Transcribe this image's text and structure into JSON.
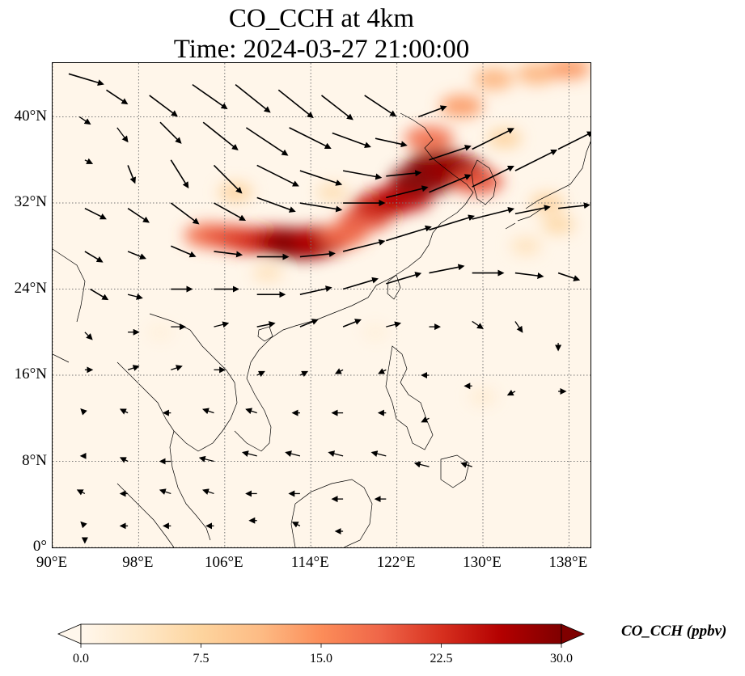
{
  "title": {
    "line1": "CO_CCH at 4km",
    "line2": "Time: 2024-03-27 21:00:00"
  },
  "map": {
    "lon_range": [
      90,
      140
    ],
    "lat_range": [
      0,
      45
    ],
    "gridlines": true,
    "lat_ticks": [
      {
        "value": 0,
        "label": "0°"
      },
      {
        "value": 8,
        "label": "8°N"
      },
      {
        "value": 16,
        "label": "16°N"
      },
      {
        "value": 24,
        "label": "24°N"
      },
      {
        "value": 32,
        "label": "32°N"
      },
      {
        "value": 40,
        "label": "40°N"
      }
    ],
    "lon_ticks": [
      {
        "value": 90,
        "label": "90°E"
      },
      {
        "value": 98,
        "label": "98°E"
      },
      {
        "value": 106,
        "label": "106°E"
      },
      {
        "value": 114,
        "label": "114°E"
      },
      {
        "value": 122,
        "label": "122°E"
      },
      {
        "value": 130,
        "label": "130°E"
      },
      {
        "value": 138,
        "label": "138°E"
      }
    ],
    "field": {
      "name": "CO_CCH",
      "units": "ppbv",
      "plumes": [
        {
          "lon": 104.5,
          "lat": 29.0,
          "value": 18
        },
        {
          "lon": 106.5,
          "lat": 28.8,
          "value": 20
        },
        {
          "lon": 108.5,
          "lat": 28.5,
          "value": 22
        },
        {
          "lon": 110.5,
          "lat": 28.5,
          "value": 24
        },
        {
          "lon": 112.0,
          "lat": 28.3,
          "value": 28
        },
        {
          "lon": 113.5,
          "lat": 28.2,
          "value": 30
        },
        {
          "lon": 115.0,
          "lat": 28.5,
          "value": 26
        },
        {
          "lon": 117.0,
          "lat": 29.0,
          "value": 18
        },
        {
          "lon": 119.0,
          "lat": 30.5,
          "value": 20
        },
        {
          "lon": 120.5,
          "lat": 31.8,
          "value": 24
        },
        {
          "lon": 122.5,
          "lat": 32.5,
          "value": 26
        },
        {
          "lon": 124.5,
          "lat": 34.2,
          "value": 30
        },
        {
          "lon": 126.0,
          "lat": 35.5,
          "value": 30
        },
        {
          "lon": 127.5,
          "lat": 35.0,
          "value": 28
        },
        {
          "lon": 129.5,
          "lat": 34.0,
          "value": 20
        },
        {
          "lon": 125.0,
          "lat": 38.0,
          "value": 18
        },
        {
          "lon": 128.0,
          "lat": 41.0,
          "value": 14
        },
        {
          "lon": 131.0,
          "lat": 43.5,
          "value": 12
        },
        {
          "lon": 135.0,
          "lat": 44.0,
          "value": 12
        },
        {
          "lon": 138.0,
          "lat": 44.5,
          "value": 14
        },
        {
          "lon": 136.0,
          "lat": 32.0,
          "value": 8
        },
        {
          "lon": 137.0,
          "lat": 30.0,
          "value": 7
        },
        {
          "lon": 134.0,
          "lat": 28.0,
          "value": 5
        },
        {
          "lon": 107.0,
          "lat": 33.0,
          "value": 8
        },
        {
          "lon": 116.0,
          "lat": 33.0,
          "value": 6
        },
        {
          "lon": 132.0,
          "lat": 38.0,
          "value": 8
        },
        {
          "lon": 110.0,
          "lat": 25.5,
          "value": 5
        },
        {
          "lon": 130.0,
          "lat": 14.0,
          "value": 3
        },
        {
          "lon": 100.0,
          "lat": 20.0,
          "value": 2
        },
        {
          "lon": 120.0,
          "lat": 20.0,
          "value": 2
        }
      ]
    },
    "wind_vectors": [
      {
        "lon": 91.5,
        "lat": 44.0,
        "u": 10,
        "v": -3
      },
      {
        "lon": 95.0,
        "lat": 42.5,
        "u": 6,
        "v": -4
      },
      {
        "lon": 99.0,
        "lat": 42.0,
        "u": 8,
        "v": -6
      },
      {
        "lon": 103.0,
        "lat": 43.0,
        "u": 10,
        "v": -7
      },
      {
        "lon": 107.0,
        "lat": 43.0,
        "u": 10,
        "v": -8
      },
      {
        "lon": 111.0,
        "lat": 42.5,
        "u": 10,
        "v": -8
      },
      {
        "lon": 115.0,
        "lat": 42.0,
        "u": 9,
        "v": -7
      },
      {
        "lon": 119.0,
        "lat": 42.0,
        "u": 9,
        "v": -6
      },
      {
        "lon": 92.5,
        "lat": 40.0,
        "u": 3,
        "v": -2
      },
      {
        "lon": 96.0,
        "lat": 39.0,
        "u": 3,
        "v": -4
      },
      {
        "lon": 100.0,
        "lat": 39.5,
        "u": 6,
        "v": -6
      },
      {
        "lon": 104.0,
        "lat": 39.5,
        "u": 10,
        "v": -8
      },
      {
        "lon": 108.0,
        "lat": 39.0,
        "u": 12,
        "v": -8
      },
      {
        "lon": 112.0,
        "lat": 39.0,
        "u": 12,
        "v": -6
      },
      {
        "lon": 116.0,
        "lat": 38.5,
        "u": 11,
        "v": -4
      },
      {
        "lon": 120.0,
        "lat": 38.0,
        "u": 9,
        "v": -2
      },
      {
        "lon": 124.0,
        "lat": 40.0,
        "u": 8,
        "v": 3
      },
      {
        "lon": 93.0,
        "lat": 36.0,
        "u": 2,
        "v": -1
      },
      {
        "lon": 97.0,
        "lat": 35.5,
        "u": 2,
        "v": -5
      },
      {
        "lon": 101.0,
        "lat": 36.0,
        "u": 5,
        "v": -8
      },
      {
        "lon": 105.0,
        "lat": 35.5,
        "u": 8,
        "v": -8
      },
      {
        "lon": 109.0,
        "lat": 35.5,
        "u": 12,
        "v": -6
      },
      {
        "lon": 113.0,
        "lat": 35.0,
        "u": 12,
        "v": -4
      },
      {
        "lon": 117.0,
        "lat": 35.0,
        "u": 11,
        "v": -2
      },
      {
        "lon": 121.0,
        "lat": 34.5,
        "u": 10,
        "v": 1
      },
      {
        "lon": 125.0,
        "lat": 36.0,
        "u": 12,
        "v": 4
      },
      {
        "lon": 129.0,
        "lat": 37.0,
        "u": 12,
        "v": 6
      },
      {
        "lon": 93.0,
        "lat": 31.5,
        "u": 6,
        "v": -3
      },
      {
        "lon": 97.0,
        "lat": 31.5,
        "u": 6,
        "v": -4
      },
      {
        "lon": 101.0,
        "lat": 32.0,
        "u": 8,
        "v": -6
      },
      {
        "lon": 105.0,
        "lat": 32.0,
        "u": 9,
        "v": -5
      },
      {
        "lon": 109.0,
        "lat": 32.5,
        "u": 11,
        "v": -4
      },
      {
        "lon": 113.0,
        "lat": 32.0,
        "u": 12,
        "v": -2
      },
      {
        "lon": 117.0,
        "lat": 32.0,
        "u": 12,
        "v": 0
      },
      {
        "lon": 121.0,
        "lat": 32.5,
        "u": 12,
        "v": 3
      },
      {
        "lon": 125.0,
        "lat": 33.0,
        "u": 12,
        "v": 5
      },
      {
        "lon": 129.0,
        "lat": 33.5,
        "u": 12,
        "v": 6
      },
      {
        "lon": 133.0,
        "lat": 35.0,
        "u": 12,
        "v": 6
      },
      {
        "lon": 137.0,
        "lat": 37.0,
        "u": 10,
        "v": 5
      },
      {
        "lon": 93.0,
        "lat": 27.5,
        "u": 5,
        "v": -3
      },
      {
        "lon": 97.0,
        "lat": 27.5,
        "u": 5,
        "v": -2
      },
      {
        "lon": 101.0,
        "lat": 28.0,
        "u": 7,
        "v": -3
      },
      {
        "lon": 105.0,
        "lat": 27.5,
        "u": 8,
        "v": -1
      },
      {
        "lon": 109.0,
        "lat": 27.0,
        "u": 9,
        "v": 0
      },
      {
        "lon": 113.0,
        "lat": 27.0,
        "u": 10,
        "v": 1
      },
      {
        "lon": 117.0,
        "lat": 27.5,
        "u": 12,
        "v": 3
      },
      {
        "lon": 121.0,
        "lat": 28.5,
        "u": 13,
        "v": 4
      },
      {
        "lon": 125.0,
        "lat": 29.5,
        "u": 13,
        "v": 4
      },
      {
        "lon": 129.0,
        "lat": 30.5,
        "u": 12,
        "v": 3
      },
      {
        "lon": 133.0,
        "lat": 31.0,
        "u": 10,
        "v": 2
      },
      {
        "lon": 137.0,
        "lat": 31.5,
        "u": 9,
        "v": 1
      },
      {
        "lon": 93.5,
        "lat": 24.0,
        "u": 5,
        "v": -3
      },
      {
        "lon": 97.0,
        "lat": 23.5,
        "u": 4,
        "v": -1
      },
      {
        "lon": 101.0,
        "lat": 24.0,
        "u": 6,
        "v": 0
      },
      {
        "lon": 105.0,
        "lat": 24.0,
        "u": 7,
        "v": 0
      },
      {
        "lon": 109.0,
        "lat": 23.5,
        "u": 8,
        "v": 0
      },
      {
        "lon": 113.0,
        "lat": 23.5,
        "u": 9,
        "v": 2
      },
      {
        "lon": 117.0,
        "lat": 24.0,
        "u": 10,
        "v": 3
      },
      {
        "lon": 121.0,
        "lat": 24.5,
        "u": 10,
        "v": 3
      },
      {
        "lon": 125.0,
        "lat": 25.5,
        "u": 10,
        "v": 2
      },
      {
        "lon": 129.0,
        "lat": 25.5,
        "u": 9,
        "v": 0
      },
      {
        "lon": 133.0,
        "lat": 25.5,
        "u": 8,
        "v": -1
      },
      {
        "lon": 137.0,
        "lat": 25.5,
        "u": 6,
        "v": -2
      },
      {
        "lon": 93.0,
        "lat": 20.0,
        "u": 2,
        "v": -2
      },
      {
        "lon": 97.0,
        "lat": 20.0,
        "u": 3,
        "v": 0
      },
      {
        "lon": 101.0,
        "lat": 20.5,
        "u": 4,
        "v": 0
      },
      {
        "lon": 105.0,
        "lat": 20.5,
        "u": 4,
        "v": 1
      },
      {
        "lon": 109.0,
        "lat": 20.5,
        "u": 5,
        "v": 1
      },
      {
        "lon": 113.0,
        "lat": 20.5,
        "u": 5,
        "v": 2
      },
      {
        "lon": 117.0,
        "lat": 20.5,
        "u": 5,
        "v": 2
      },
      {
        "lon": 121.0,
        "lat": 20.5,
        "u": 4,
        "v": 1
      },
      {
        "lon": 125.0,
        "lat": 20.5,
        "u": 3,
        "v": 0
      },
      {
        "lon": 129.0,
        "lat": 21.0,
        "u": 3,
        "v": -2
      },
      {
        "lon": 133.0,
        "lat": 21.0,
        "u": 2,
        "v": -3
      },
      {
        "lon": 137.0,
        "lat": 19.0,
        "u": 0,
        "v": -2
      },
      {
        "lon": 93.0,
        "lat": 16.5,
        "u": 2,
        "v": 0
      },
      {
        "lon": 97.0,
        "lat": 16.5,
        "u": 3,
        "v": 1
      },
      {
        "lon": 101.0,
        "lat": 16.5,
        "u": 3,
        "v": 1
      },
      {
        "lon": 105.0,
        "lat": 16.5,
        "u": 3,
        "v": 0
      },
      {
        "lon": 109.0,
        "lat": 16.0,
        "u": 2,
        "v": 1
      },
      {
        "lon": 113.0,
        "lat": 16.0,
        "u": 2,
        "v": 1
      },
      {
        "lon": 117.0,
        "lat": 16.5,
        "u": -2,
        "v": -1
      },
      {
        "lon": 121.0,
        "lat": 16.5,
        "u": -2,
        "v": -1
      },
      {
        "lon": 125.0,
        "lat": 16.0,
        "u": -2,
        "v": 0
      },
      {
        "lon": 129.0,
        "lat": 15.0,
        "u": -2,
        "v": 0
      },
      {
        "lon": 133.0,
        "lat": 14.5,
        "u": -2,
        "v": -1
      },
      {
        "lon": 137.0,
        "lat": 14.5,
        "u": 2,
        "v": 0
      },
      {
        "lon": 93.0,
        "lat": 12.5,
        "u": -1,
        "v": 1
      },
      {
        "lon": 97.0,
        "lat": 12.5,
        "u": -2,
        "v": 1
      },
      {
        "lon": 101.0,
        "lat": 12.5,
        "u": -2,
        "v": 0
      },
      {
        "lon": 105.0,
        "lat": 12.5,
        "u": -3,
        "v": 1
      },
      {
        "lon": 109.0,
        "lat": 12.5,
        "u": -3,
        "v": 1
      },
      {
        "lon": 113.0,
        "lat": 12.5,
        "u": -2,
        "v": 0
      },
      {
        "lon": 117.0,
        "lat": 12.5,
        "u": -3,
        "v": 0
      },
      {
        "lon": 121.0,
        "lat": 12.5,
        "u": -2,
        "v": 0
      },
      {
        "lon": 125.0,
        "lat": 12.0,
        "u": -2,
        "v": -1
      },
      {
        "lon": 93.0,
        "lat": 8.5,
        "u": -1,
        "v": 0
      },
      {
        "lon": 97.0,
        "lat": 8.0,
        "u": -2,
        "v": 1
      },
      {
        "lon": 101.0,
        "lat": 8.0,
        "u": -3,
        "v": 0
      },
      {
        "lon": 105.0,
        "lat": 8.0,
        "u": -4,
        "v": 1
      },
      {
        "lon": 109.0,
        "lat": 8.5,
        "u": -4,
        "v": 1
      },
      {
        "lon": 113.0,
        "lat": 8.5,
        "u": -4,
        "v": 1
      },
      {
        "lon": 117.0,
        "lat": 8.5,
        "u": -4,
        "v": 1
      },
      {
        "lon": 121.0,
        "lat": 8.5,
        "u": -4,
        "v": 1
      },
      {
        "lon": 125.0,
        "lat": 7.5,
        "u": -4,
        "v": 1
      },
      {
        "lon": 129.0,
        "lat": 7.5,
        "u": -3,
        "v": 1
      },
      {
        "lon": 93.0,
        "lat": 5.0,
        "u": -2,
        "v": 1
      },
      {
        "lon": 97.0,
        "lat": 5.0,
        "u": -2,
        "v": 0
      },
      {
        "lon": 101.0,
        "lat": 5.0,
        "u": -3,
        "v": 1
      },
      {
        "lon": 105.0,
        "lat": 5.0,
        "u": -3,
        "v": 1
      },
      {
        "lon": 109.0,
        "lat": 5.0,
        "u": -3,
        "v": 0
      },
      {
        "lon": 113.0,
        "lat": 5.0,
        "u": -3,
        "v": 0
      },
      {
        "lon": 117.0,
        "lat": 4.5,
        "u": -3,
        "v": 0
      },
      {
        "lon": 121.0,
        "lat": 4.5,
        "u": -3,
        "v": 0
      },
      {
        "lon": 93.0,
        "lat": 2.0,
        "u": -1,
        "v": 1
      },
      {
        "lon": 97.0,
        "lat": 2.0,
        "u": -2,
        "v": 0
      },
      {
        "lon": 101.0,
        "lat": 2.0,
        "u": -2,
        "v": 0
      },
      {
        "lon": 105.0,
        "lat": 2.0,
        "u": -2,
        "v": 0
      },
      {
        "lon": 109.0,
        "lat": 2.5,
        "u": -2,
        "v": 0
      },
      {
        "lon": 113.0,
        "lat": 2.0,
        "u": -2,
        "v": 1
      },
      {
        "lon": 117.0,
        "lat": 1.5,
        "u": -2,
        "v": 0
      },
      {
        "lon": 93.0,
        "lat": 0.8,
        "u": 0,
        "v": -1
      }
    ]
  },
  "colorbar": {
    "label": "CO_CCH (ppbv)",
    "min": 0.0,
    "max": 30.0,
    "extend": "both",
    "colormap": "OrRd",
    "ticks": [
      {
        "value": 0.0,
        "label": "0.0"
      },
      {
        "value": 7.5,
        "label": "7.5"
      },
      {
        "value": 15.0,
        "label": "15.0"
      },
      {
        "value": 22.5,
        "label": "22.5"
      },
      {
        "value": 30.0,
        "label": "30.0"
      }
    ],
    "stops": [
      "#fff7ec",
      "#fee8c8",
      "#fdd49e",
      "#fdbb84",
      "#fc8d59",
      "#ef6548",
      "#d7301f",
      "#b30000",
      "#7f0000"
    ]
  }
}
